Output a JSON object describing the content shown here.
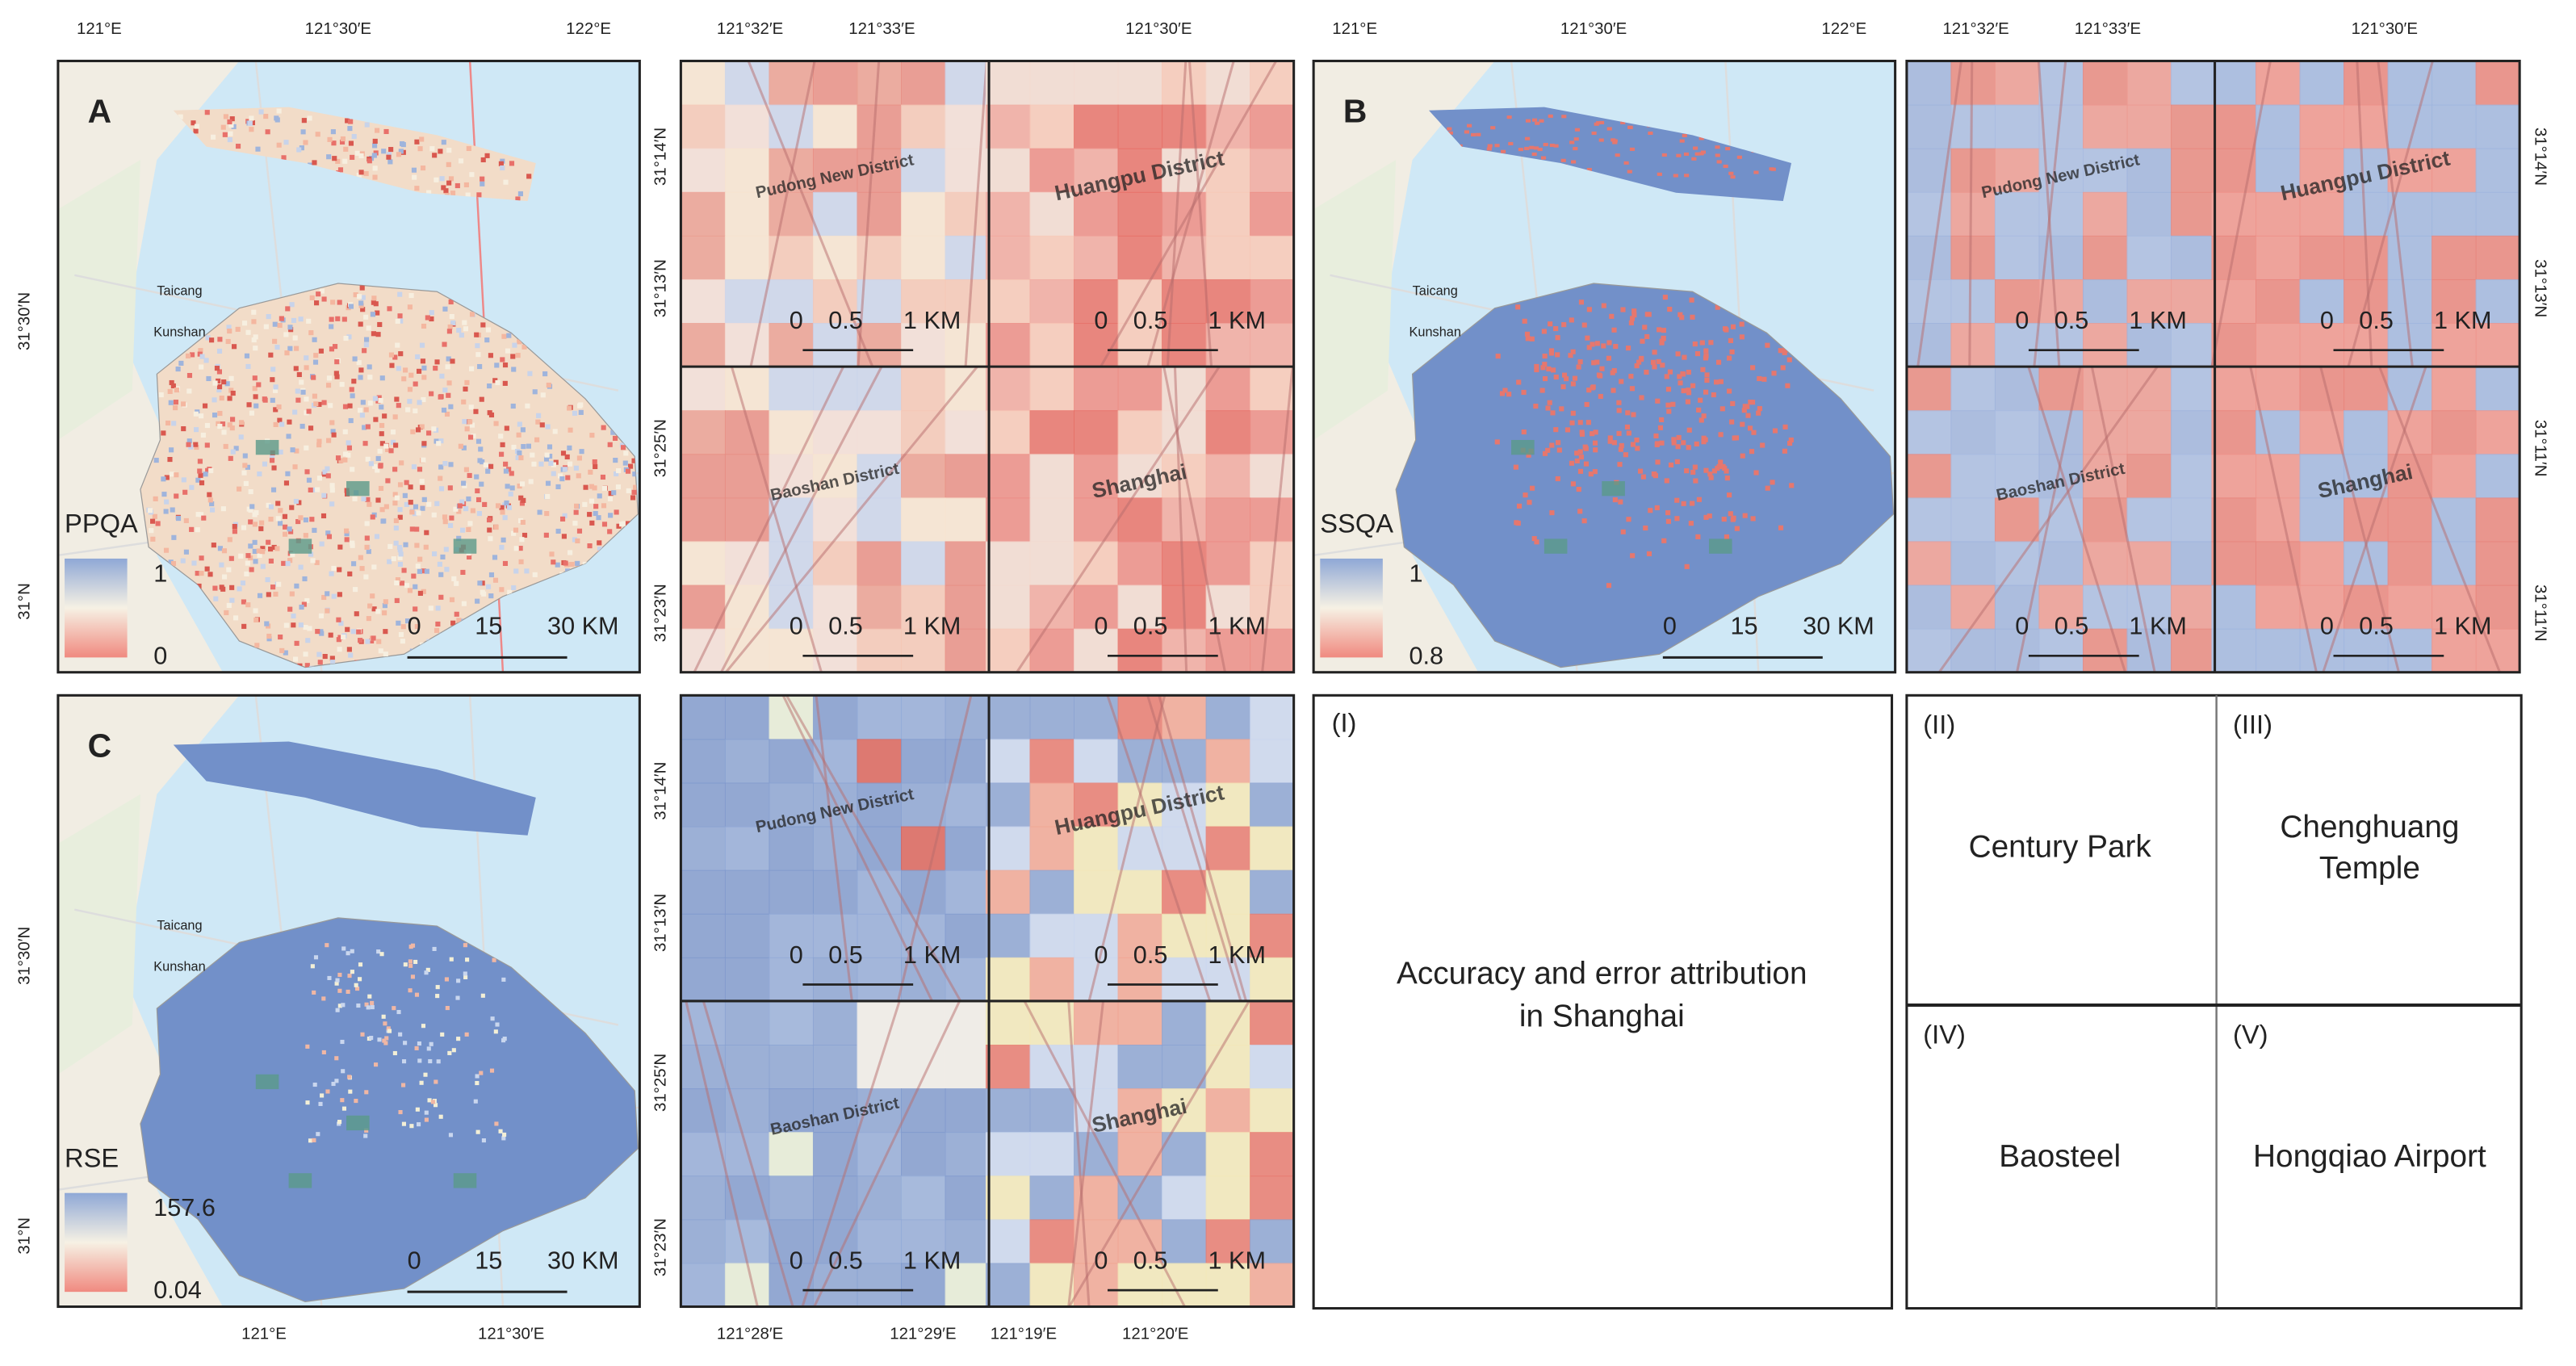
{
  "panels": [
    {
      "label": "A",
      "legend_title": "PPQA",
      "legend_max": "1",
      "legend_min": "0",
      "scale": [
        "0",
        "15",
        "30 KM"
      ],
      "top_ticks": [
        "121°E",
        "121°30′E",
        "122°E"
      ],
      "left_ticks": [
        "31°30′N",
        "31°N"
      ],
      "places": [
        "Taicang",
        "Kunshan"
      ]
    },
    {
      "label": "B",
      "legend_title": "SSQA",
      "legend_max": "1",
      "legend_min": "0.8",
      "scale": [
        "0",
        "15",
        "30 KM"
      ],
      "top_ticks": [
        "121°E",
        "121°30′E",
        "122°E"
      ],
      "places": [
        "Taicang",
        "Kunshan"
      ]
    },
    {
      "label": "C",
      "legend_title": "RSE",
      "legend_max": "157.6",
      "legend_min": "0.04",
      "scale": [
        "0",
        "15",
        "30 KM"
      ],
      "bottom_ticks": [
        "121°E",
        "121°30′E"
      ],
      "left_ticks": [
        "31°30′N",
        "31°N"
      ],
      "places": [
        "Taicang",
        "Kunshan"
      ]
    }
  ],
  "insets": [
    {
      "top_ticks": [
        "121°32′E",
        "121°33′E",
        "121°30′E"
      ],
      "side_ticks": [
        "31°14′N",
        "31°13′N",
        "31°25′N",
        "31°23′N"
      ],
      "quadrants": [
        {
          "district": "Pudong New District",
          "scale": [
            "0",
            "0.5",
            "1 KM"
          ]
        },
        {
          "district": "Huangpu District",
          "scale": [
            "0",
            "0.5",
            "1 KM"
          ]
        },
        {
          "district": "Baoshan District",
          "scale": [
            "0",
            "0.5",
            "1 KM"
          ]
        },
        {
          "district": "Shanghai",
          "scale": [
            "0",
            "0.5",
            "1 KM"
          ]
        }
      ]
    },
    {
      "top_ticks": [
        "121°32′E",
        "121°33′E",
        "121°30′E"
      ],
      "side_ticks": [
        "31°14′N",
        "31°13′N",
        "31°11′N",
        "31°11′N"
      ],
      "quadrants": [
        {
          "district": "Pudong New District",
          "scale": [
            "0",
            "0.5",
            "1 KM"
          ]
        },
        {
          "district": "Huangpu District",
          "scale": [
            "0",
            "0.5",
            "1 KM"
          ]
        },
        {
          "district": "Baoshan District",
          "scale": [
            "0",
            "0.5",
            "1 KM"
          ]
        },
        {
          "district": "Shanghai",
          "scale": [
            "0",
            "0.5",
            "1 KM"
          ]
        }
      ]
    },
    {
      "side_ticks": [
        "31°14′N",
        "31°13′N",
        "31°25′N",
        "31°23′N"
      ],
      "bottom_ticks": [
        "121°28′E",
        "121°29′E",
        "121°19′E",
        "121°20′E"
      ],
      "quadrants": [
        {
          "district": "Pudong New District",
          "scale": [
            "0",
            "0.5",
            "1 KM"
          ]
        },
        {
          "district": "Huangpu District",
          "scale": [
            "0",
            "0.5",
            "1 KM"
          ]
        },
        {
          "district": "Baoshan District",
          "scale": [
            "0",
            "0.5",
            "1 KM"
          ]
        },
        {
          "district": "Shanghai",
          "scale": [
            "0",
            "0.5",
            "1 KM"
          ]
        }
      ]
    }
  ],
  "key": {
    "number": "(I)",
    "title_lines": [
      "Accuracy and error attribution",
      "in Shanghai"
    ],
    "cells": [
      {
        "number": "(II)",
        "name_lines": [
          "Century Park"
        ]
      },
      {
        "number": "(III)",
        "name_lines": [
          "Chenghuang",
          "Temple"
        ]
      },
      {
        "number": "(IV)",
        "name_lines": [
          "Baosteel"
        ]
      },
      {
        "number": "(V)",
        "name_lines": [
          "Hongqiao Airport"
        ]
      }
    ]
  }
}
